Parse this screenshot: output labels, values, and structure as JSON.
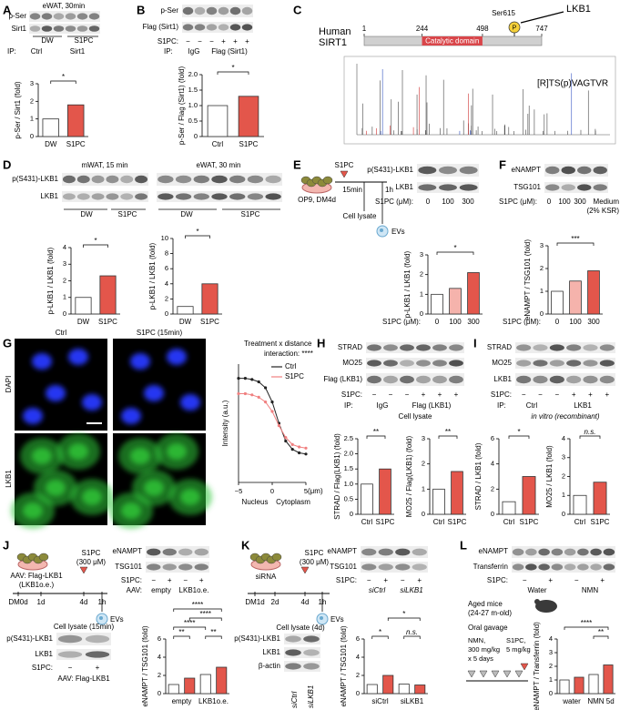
{
  "A": {
    "letter": "A",
    "title": "eWAT, 30min",
    "rows": [
      "p-Ser",
      "Sirt1"
    ],
    "groups": [
      "DW",
      "S1PC"
    ],
    "ip": [
      "IP:",
      "Ctrl",
      "Sirt1"
    ],
    "chart": {
      "type": "bar",
      "ylabel": "p-Ser / Sirt1 (fold)",
      "categories": [
        "DW",
        "S1PC"
      ],
      "values": [
        1,
        1.8
      ],
      "colors": [
        "#ffffff",
        "#e3564b"
      ],
      "ylim": [
        0,
        3
      ],
      "yticks": [
        0,
        1,
        2,
        3
      ],
      "significance": [
        "*"
      ]
    }
  },
  "B": {
    "letter": "B",
    "rows": [
      "p-Ser",
      "Flag (Sirt1)"
    ],
    "s1pc": "S1PC:",
    "signs": [
      "−",
      "−",
      "−",
      "+",
      "+",
      "+"
    ],
    "ip": [
      "IP:",
      "IgG",
      "Flag (Sirt1)"
    ],
    "chart": {
      "type": "bar",
      "ylabel": "p-Ser / Flag (Sirt1) (fold)",
      "categories": [
        "Ctrl",
        "S1PC"
      ],
      "values": [
        1,
        1.3
      ],
      "colors": [
        "#ffffff",
        "#e3564b"
      ],
      "ylim": [
        0,
        2
      ],
      "yticks": [
        0,
        0.5,
        {
          "value": 1,
          "label": "1.0"
        },
        1.5,
        {
          "value": 2,
          "label": "2.0"
        }
      ],
      "significance": [
        "*"
      ]
    }
  },
  "C": {
    "letter": "C",
    "protein": [
      "Human",
      "SIRT1"
    ],
    "domain_positions": [
      1,
      244,
      498,
      747
    ],
    "domain": "Catalytic domain",
    "site": "Ser615",
    "kinase": "LKB1",
    "phospho": "P",
    "peptide": "[R]TS(p)VAGTVR"
  },
  "D": {
    "letter": "D",
    "conditions": [
      "mWAT, 15 min",
      "eWAT, 30 min"
    ],
    "rows": [
      "p(S431)-LKB1",
      "LKB1"
    ],
    "groups": [
      "DW",
      "S1PC",
      "DW",
      "S1PC"
    ],
    "charts": [
      {
        "type": "bar",
        "ylabel": "p-LKB1 / LKB1 (fold)",
        "categories": [
          "DW",
          "S1PC"
        ],
        "values": [
          1,
          2.3
        ],
        "colors": [
          "#ffffff",
          "#e3564b"
        ],
        "ylim": [
          0,
          4
        ],
        "yticks": [
          0,
          1,
          2,
          3,
          4
        ],
        "significance": [
          "*"
        ]
      },
      {
        "type": "bar",
        "ylabel": "p-LKB1 / LKB1 (fold)",
        "categories": [
          "DW",
          "S1PC"
        ],
        "values": [
          1,
          4
        ],
        "colors": [
          "#ffffff",
          "#e3564b"
        ],
        "ylim": [
          0,
          10
        ],
        "yticks": [
          0,
          2,
          4,
          6,
          8,
          10
        ],
        "significance": [
          "*"
        ]
      }
    ]
  },
  "E": {
    "letter": "E",
    "cells": "OP9, DM4d",
    "treatment": "S1PC",
    "times": [
      "15min",
      "1h"
    ],
    "samples": [
      "Cell lysate",
      "EVs"
    ],
    "rows": [
      "p(S431)-LKB1",
      "LKB1"
    ],
    "dose_label": "S1PC (μM):",
    "doses": [
      "0",
      "100",
      "300"
    ],
    "chart": {
      "type": "bar",
      "ylabel": "p-LKB1 / LKB1 (fold)",
      "xlabel": "S1PC (μM):",
      "categories": [
        "0",
        "100",
        "300"
      ],
      "values": [
        1,
        1.3,
        2.1
      ],
      "colors": [
        "#ffffff",
        "#f5b3ac",
        "#e3564b"
      ],
      "ylim": [
        0,
        3
      ],
      "yticks": [
        0,
        1,
        2,
        3
      ],
      "significance": [
        "*"
      ]
    }
  },
  "F": {
    "letter": "F",
    "rows": [
      "eNAMPT",
      "TSG101"
    ],
    "dose_label": "S1PC (μM):",
    "doses": [
      "0",
      "100",
      "300"
    ],
    "medium": [
      "Medium",
      "(2% KSR)"
    ],
    "chart": {
      "type": "bar",
      "ylabel": "eNAMPT / TSG101 (fold)",
      "xlabel": "S1PC (μM):",
      "categories": [
        "0",
        "100",
        "300"
      ],
      "values": [
        1,
        1.45,
        1.9
      ],
      "colors": [
        "#ffffff",
        "#f5b3ac",
        "#e3564b"
      ],
      "ylim": [
        0,
        3
      ],
      "yticks": [
        0,
        1,
        2,
        3
      ],
      "significance": [
        "***"
      ]
    }
  },
  "G": {
    "letter": "G",
    "columns": [
      "Ctrl",
      "S1PC (15min)"
    ],
    "stains": [
      "DAPI",
      "LKB1"
    ],
    "chart": {
      "type": "line",
      "annotation": [
        "Treatment x distance",
        "interaction: ****"
      ],
      "ylabel": "Intensity (a.u.)",
      "xlabel": "(μm)",
      "regions": [
        "Nucleus",
        "Cytoplasm"
      ],
      "x": [
        -5,
        -4,
        -3,
        -2,
        -1,
        0,
        1,
        2,
        3,
        4,
        5
      ],
      "series": [
        {
          "name": "Ctrl",
          "color": "#222222",
          "values": [
            0.88,
            0.88,
            0.87,
            0.85,
            0.8,
            0.68,
            0.5,
            0.35,
            0.28,
            0.25,
            0.24
          ]
        },
        {
          "name": "S1PC",
          "color": "#f08080",
          "values": [
            0.75,
            0.75,
            0.74,
            0.72,
            0.68,
            0.6,
            0.48,
            0.38,
            0.32,
            0.3,
            0.29
          ]
        }
      ],
      "xlim": [
        -5,
        5
      ],
      "xticks": [
        {
          "value": -5,
          "label": "−5"
        },
        0,
        5
      ],
      "ylim": [
        0,
        1
      ]
    }
  },
  "H": {
    "letter": "H",
    "rows": [
      "STRAD",
      "MO25",
      "Flag (LKB1)"
    ],
    "s1pc": "S1PC:",
    "signs": [
      "−",
      "−",
      "−",
      "+",
      "+",
      "+"
    ],
    "ip": [
      "IP:",
      "IgG",
      "Flag (LKB1)"
    ],
    "sample": "Cell lysate",
    "charts": [
      {
        "type": "bar",
        "ylabel": "STRAD / Flag(LKB1) (fold)",
        "categories": [
          "Ctrl",
          "S1PC"
        ],
        "values": [
          1,
          1.5
        ],
        "colors": [
          "#ffffff",
          "#e3564b"
        ],
        "ylim": [
          0,
          2.5
        ],
        "yticks": [
          0,
          0.5,
          {
            "value": 1,
            "label": "1.0"
          },
          1.5,
          {
            "value": 2,
            "label": "2.0"
          },
          2.5
        ],
        "significance": [
          "**"
        ]
      },
      {
        "type": "bar",
        "ylabel": "MO25 / Flag(LKB1) (fold)",
        "categories": [
          "Ctrl",
          "S1PC"
        ],
        "values": [
          1,
          1.7
        ],
        "colors": [
          "#ffffff",
          "#e3564b"
        ],
        "ylim": [
          0,
          3
        ],
        "yticks": [
          0,
          1,
          2,
          3
        ],
        "significance": [
          "**"
        ]
      }
    ]
  },
  "I": {
    "letter": "I",
    "rows": [
      "STRAD",
      "MO25",
      "LKB1"
    ],
    "s1pc": "S1PC:",
    "signs": [
      "−",
      "−",
      "−",
      "+",
      "+",
      "+"
    ],
    "ip": [
      "IP:",
      "Ctrl",
      "LKB1"
    ],
    "sample": "in vitro (recombinant)",
    "charts": [
      {
        "type": "bar",
        "ylabel": "STRAD / LKB1 (fold)",
        "categories": [
          "Ctrl",
          "S1PC"
        ],
        "values": [
          1,
          3
        ],
        "colors": [
          "#ffffff",
          "#e3564b"
        ],
        "ylim": [
          0,
          6
        ],
        "yticks": [
          0,
          2,
          4,
          6
        ],
        "significance": [
          "*"
        ]
      },
      {
        "type": "bar",
        "ylabel": "MO25 / LKB1 (fold)",
        "categories": [
          "Ctrl",
          "S1PC"
        ],
        "values": [
          1,
          1.7
        ],
        "colors": [
          "#ffffff",
          "#e3564b"
        ],
        "ylim": [
          0,
          4
        ],
        "yticks": [
          0,
          1,
          2,
          3,
          4
        ],
        "significance": [
          "n.s."
        ]
      }
    ]
  },
  "J": {
    "letter": "J",
    "vector": [
      "AAV: Flag-LKB1",
      "(LKB1o.e.)"
    ],
    "days": [
      "DM0d",
      "1d",
      "4d",
      "1h"
    ],
    "treatment": [
      "S1PC",
      "(300 μM)"
    ],
    "sample": "EVs",
    "rows": [
      "eNAMPT",
      "TSG101"
    ],
    "s1pc": "S1PC:",
    "signs": [
      "−",
      "+",
      "−",
      "+"
    ],
    "aav": [
      "AAV:",
      "empty",
      "LKB1o.e."
    ],
    "lysate": {
      "title": "Cell lysate (15min)",
      "rows": [
        "p(S431)-LKB1",
        "LKB1"
      ],
      "s1pc": "S1PC:",
      "signs": [
        "−",
        "+"
      ],
      "aav": "AAV: Flag-LKB1"
    },
    "chart": {
      "type": "bar",
      "ylabel": "eNAMPT / TSG101 (fold)",
      "categories": [
        null,
        null,
        null,
        null
      ],
      "groups": [
        "empty",
        "LKB1o.e."
      ],
      "values": [
        1,
        1.7,
        2.1,
        2.9
      ],
      "colors": [
        "#ffffff",
        "#e3564b",
        "#ffffff",
        "#e3564b"
      ],
      "ylim": [
        0,
        6
      ],
      "yticks": [
        0,
        2,
        4,
        6
      ],
      "significance": [
        "**",
        "**",
        "****",
        "****",
        "****"
      ]
    }
  },
  "K": {
    "letter": "K",
    "label": "siRNA",
    "days": [
      "DM1d",
      "2d",
      "4d",
      "1h"
    ],
    "treatment": [
      "S1PC",
      "(300 μM)"
    ],
    "sample": "EVs",
    "rows": [
      "eNAMPT",
      "TSG101"
    ],
    "s1pc": "S1PC:",
    "signs": [
      "−",
      "+",
      "−",
      "+"
    ],
    "sirna": [
      "siCtrl",
      "siLKB1"
    ],
    "lysate": {
      "title": "Cell lysate (4d)",
      "rows": [
        "p(S431)-LKB1",
        "LKB1",
        "β-actin"
      ],
      "lanes": [
        "siCtrl",
        "siLKB1"
      ]
    },
    "chart": {
      "type": "bar",
      "ylabel": "eNAMPT / TSG101 (fold)",
      "categories": [
        null,
        null,
        null,
        null
      ],
      "groups": [
        "siCtrl",
        "siLKB1"
      ],
      "values": [
        1,
        2,
        1.05,
        0.95
      ],
      "colors": [
        "#ffffff",
        "#e3564b",
        "#ffffff",
        "#e3564b"
      ],
      "ylim": [
        0,
        6
      ],
      "yticks": [
        0,
        2,
        4,
        6
      ],
      "significance": [
        "*",
        "*",
        "n.s."
      ]
    }
  },
  "L": {
    "letter": "L",
    "rows": [
      "eNAMPT",
      "Transferrin"
    ],
    "s1pc": "S1PC:",
    "signs": [
      "−",
      "+",
      "−",
      "+"
    ],
    "groups": [
      "Water",
      "NMN"
    ],
    "mice": [
      "Aged mice",
      "(24-27 m-old)"
    ],
    "protocol": "Oral gavage",
    "nmn": [
      "NMN,",
      "300 mg/kg",
      "x 5 days"
    ],
    "s1pc_dose": [
      "S1PC,",
      "5 mg/kg"
    ],
    "chart": {
      "type": "bar",
      "ylabel": "eNAMPT / Transferrin (fold)",
      "categories": [
        null,
        null,
        null,
        null
      ],
      "groups": [
        "water",
        "NMN 5d"
      ],
      "values": [
        1,
        1.2,
        1.4,
        2.1
      ],
      "colors": [
        "#ffffff",
        "#e3564b",
        "#ffffff",
        "#e3564b"
      ],
      "ylim": [
        0,
        4
      ],
      "yticks": [
        0,
        1,
        2,
        3,
        4
      ],
      "significance": [
        "****",
        "**"
      ]
    }
  }
}
